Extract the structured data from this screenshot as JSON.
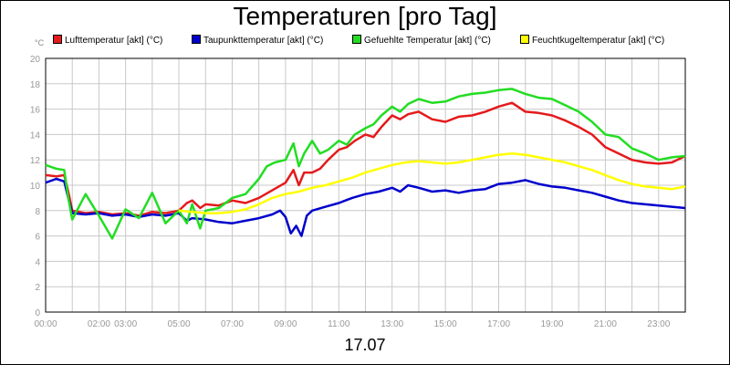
{
  "chart_data": {
    "type": "line",
    "title": "Temperaturen [pro Tag]",
    "y_unit": "°C",
    "date": "17.07",
    "ylim": [
      0,
      20
    ],
    "y_ticks": [
      0,
      2,
      4,
      6,
      8,
      10,
      12,
      14,
      16,
      18,
      20
    ],
    "xlim": [
      0,
      24
    ],
    "x_ticks": [
      "00:00",
      "02:00",
      "03:00",
      "05:00",
      "07:00",
      "09:00",
      "11:00",
      "13:00",
      "15:00",
      "17:00",
      "19:00",
      "21:00",
      "23:00"
    ],
    "x_tick_hours": [
      0,
      2,
      3,
      5,
      7,
      9,
      11,
      13,
      15,
      17,
      19,
      21,
      23
    ],
    "grid": true,
    "legend_position": "top",
    "series": [
      {
        "name": "Lufttemperatur [akt] (°C)",
        "color": "#e41a1c",
        "x": [
          0,
          0.4,
          0.7,
          0.85,
          1.0,
          1.5,
          2,
          2.5,
          3,
          3.5,
          4,
          4.5,
          5,
          5.3,
          5.5,
          5.8,
          6,
          6.5,
          7,
          7.5,
          8,
          8.5,
          9,
          9.3,
          9.5,
          9.7,
          10,
          10.3,
          10.6,
          11,
          11.3,
          11.6,
          12,
          12.3,
          12.6,
          13,
          13.3,
          13.6,
          14,
          14.5,
          15,
          15.5,
          16,
          16.5,
          17,
          17.5,
          18,
          18.5,
          19,
          19.5,
          20,
          20.5,
          21,
          21.5,
          22,
          22.5,
          23,
          23.5,
          24
        ],
        "values": [
          10.8,
          10.7,
          10.8,
          9.5,
          8.0,
          7.8,
          7.9,
          7.7,
          7.8,
          7.6,
          7.9,
          7.8,
          8.0,
          8.6,
          8.8,
          8.2,
          8.5,
          8.4,
          8.8,
          8.6,
          9.0,
          9.6,
          10.2,
          11.2,
          10.0,
          11.0,
          11.0,
          11.3,
          12.0,
          12.8,
          13.0,
          13.5,
          14.0,
          13.8,
          14.6,
          15.5,
          15.2,
          15.6,
          15.8,
          15.2,
          15.0,
          15.4,
          15.5,
          15.8,
          16.2,
          16.5,
          15.8,
          15.7,
          15.5,
          15.1,
          14.6,
          14.0,
          13.0,
          12.5,
          12.0,
          11.8,
          11.7,
          11.8,
          12.3
        ]
      },
      {
        "name": "Taupunkttemperatur [akt] (°C)",
        "color": "#0000cc",
        "x": [
          0,
          0.4,
          0.7,
          0.85,
          1.0,
          1.5,
          2,
          2.5,
          3,
          3.5,
          4,
          4.5,
          5,
          5.3,
          5.5,
          6,
          6.5,
          7,
          7.5,
          8,
          8.5,
          8.8,
          9,
          9.2,
          9.4,
          9.6,
          9.8,
          10,
          10.5,
          11,
          11.5,
          12,
          12.5,
          13,
          13.3,
          13.6,
          14,
          14.5,
          15,
          15.5,
          16,
          16.5,
          17,
          17.5,
          18,
          18.5,
          19,
          19.5,
          20,
          20.5,
          21,
          21.5,
          22,
          22.5,
          23,
          23.5,
          24
        ],
        "values": [
          10.2,
          10.5,
          10.3,
          9.0,
          7.8,
          7.7,
          7.8,
          7.6,
          7.7,
          7.5,
          7.7,
          7.6,
          7.8,
          7.2,
          7.4,
          7.3,
          7.1,
          7.0,
          7.2,
          7.4,
          7.7,
          8.0,
          7.5,
          6.2,
          6.8,
          6.0,
          7.6,
          8.0,
          8.3,
          8.6,
          9.0,
          9.3,
          9.5,
          9.8,
          9.5,
          10.0,
          9.8,
          9.5,
          9.6,
          9.4,
          9.6,
          9.7,
          10.1,
          10.2,
          10.4,
          10.1,
          9.9,
          9.8,
          9.6,
          9.4,
          9.1,
          8.8,
          8.6,
          8.5,
          8.4,
          8.3,
          8.2
        ]
      },
      {
        "name": "Gefuehlte Temperatur [akt] (°C)",
        "color": "#22dd22",
        "x": [
          0,
          0.4,
          0.7,
          0.85,
          1.0,
          1.5,
          2,
          2.5,
          3,
          3.5,
          4,
          4.5,
          5,
          5.3,
          5.5,
          5.8,
          6,
          6.5,
          7,
          7.5,
          8,
          8.3,
          8.6,
          9,
          9.3,
          9.5,
          9.7,
          10,
          10.3,
          10.6,
          11,
          11.3,
          11.6,
          12,
          12.3,
          12.6,
          13,
          13.3,
          13.6,
          14,
          14.5,
          15,
          15.5,
          16,
          16.5,
          17,
          17.5,
          18,
          18.5,
          19,
          19.5,
          20,
          20.5,
          21,
          21.5,
          22,
          22.5,
          23,
          23.5,
          24
        ],
        "values": [
          11.6,
          11.3,
          11.2,
          9.0,
          7.3,
          9.3,
          7.6,
          5.8,
          8.1,
          7.4,
          9.4,
          7.0,
          8.0,
          7.0,
          8.5,
          6.6,
          8.0,
          8.2,
          9.0,
          9.3,
          10.5,
          11.5,
          11.8,
          12.0,
          13.3,
          11.5,
          12.5,
          13.5,
          12.5,
          12.8,
          13.5,
          13.2,
          14.0,
          14.5,
          14.8,
          15.5,
          16.2,
          15.8,
          16.4,
          16.8,
          16.5,
          16.6,
          17.0,
          17.2,
          17.3,
          17.5,
          17.6,
          17.2,
          16.9,
          16.8,
          16.3,
          15.8,
          15.0,
          14.0,
          13.8,
          12.9,
          12.5,
          12.0,
          12.2,
          12.3
        ]
      },
      {
        "name": "Feuchtkugeltemperatur [akt] (°C)",
        "color": "#ffff00",
        "x": [
          5.0,
          5.5,
          6.0,
          6.5,
          7.0,
          7.5,
          8.0,
          8.5,
          9.0,
          9.5,
          10.0,
          10.5,
          11.0,
          11.5,
          12.0,
          12.5,
          13.0,
          13.5,
          14.0,
          14.5,
          15.0,
          15.5,
          16.0,
          16.5,
          17.0,
          17.5,
          18.0,
          18.5,
          19.0,
          19.5,
          20.0,
          20.5,
          21.0,
          21.5,
          22.0,
          22.5,
          23.0,
          23.5,
          24.0
        ],
        "values": [
          8.0,
          7.9,
          7.8,
          7.8,
          7.9,
          8.1,
          8.5,
          9.0,
          9.3,
          9.5,
          9.8,
          10.0,
          10.3,
          10.6,
          11.0,
          11.3,
          11.6,
          11.8,
          11.9,
          11.8,
          11.7,
          11.8,
          12.0,
          12.2,
          12.4,
          12.5,
          12.4,
          12.2,
          12.0,
          11.8,
          11.5,
          11.2,
          10.8,
          10.4,
          10.1,
          9.9,
          9.8,
          9.7,
          9.9
        ]
      }
    ]
  }
}
